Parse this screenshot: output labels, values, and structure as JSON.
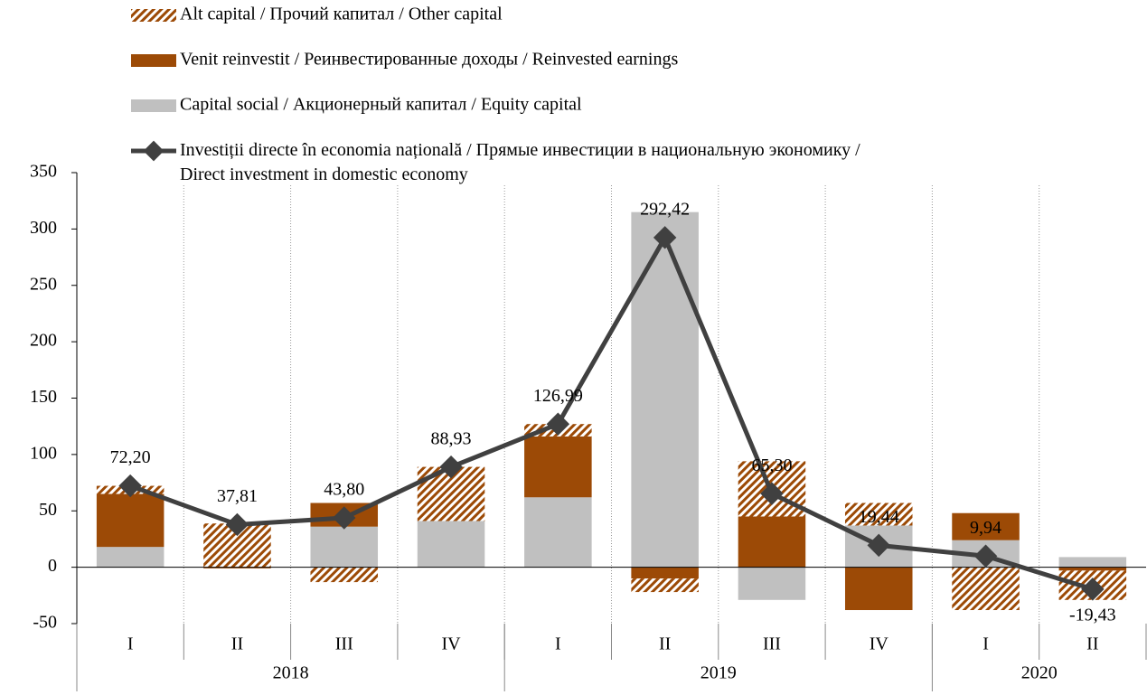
{
  "chart_data": {
    "type": "bar",
    "categories": [
      "I",
      "II",
      "III",
      "IV",
      "I",
      "II",
      "III",
      "IV",
      "I",
      "II"
    ],
    "year_groups": [
      {
        "name": "2018",
        "count": 4
      },
      {
        "name": "2019",
        "count": 4
      },
      {
        "name": "2020",
        "count": 2
      }
    ],
    "series": [
      {
        "name": "Capital social / Акционерный капитал / Equity capital",
        "color": "#c0c0c0",
        "pattern": "solid",
        "values": [
          18,
          0,
          36,
          41,
          62,
          315,
          -29,
          37,
          24,
          9
        ]
      },
      {
        "name": "Venit reinvestit / Реинвестированные доходы / Reinvested earnings",
        "color": "#9c4a06",
        "pattern": "solid",
        "values": [
          47,
          -1,
          21,
          0,
          54,
          -10,
          45,
          -38,
          24,
          -3
        ]
      },
      {
        "name": "Alt capital / Прочий капитал / Other capital",
        "color": "#9c4a06",
        "pattern": "hatch",
        "values": [
          7.2,
          38.8,
          -13.2,
          48,
          11,
          -12,
          49,
          20,
          -38,
          -26
        ]
      },
      {
        "name": "Investiții directe în economia națională / Прямые инвестиции в национальную экономику /\nDirect investment in domestic economy",
        "color": "#404040",
        "type": "line",
        "values": [
          72.2,
          37.81,
          43.8,
          88.93,
          126.99,
          292.42,
          65.3,
          19.44,
          9.94,
          -19.43
        ],
        "value_labels": [
          "72,20",
          "37,81",
          "43,80",
          "88,93",
          "126,99",
          "292,42",
          "65,30",
          "19,44",
          "9,94",
          "-19,43"
        ]
      }
    ],
    "legend_order": [
      2,
      1,
      0,
      3
    ],
    "ylim": [
      -50,
      350
    ],
    "yticks": [
      -50,
      0,
      50,
      100,
      150,
      200,
      250,
      300,
      350
    ],
    "grid": "vertical-dotted"
  }
}
